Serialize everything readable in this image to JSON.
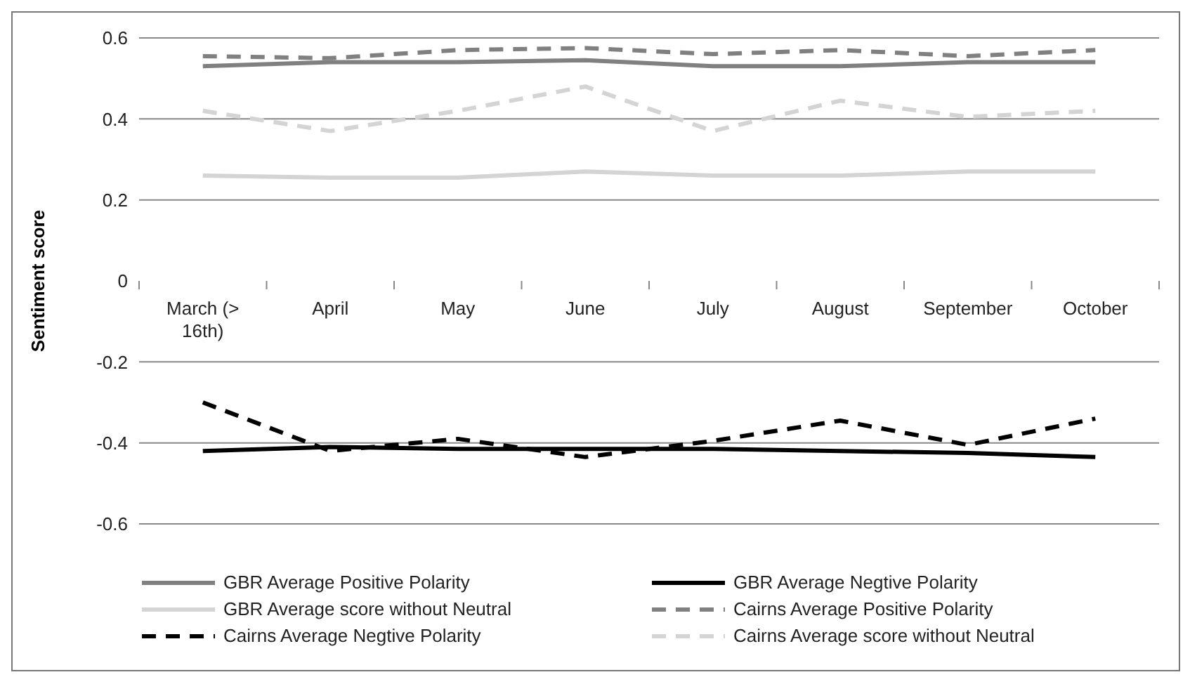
{
  "chart_data": {
    "type": "line",
    "ylabel": "Sentiment score",
    "categories": [
      "March (> 16th)",
      "April",
      "May",
      "June",
      "July",
      "August",
      "September",
      "October"
    ],
    "series": [
      {
        "name": "GBR Average Positive Polarity",
        "color": "#808080",
        "line_style": "solid",
        "values": [
          0.53,
          0.54,
          0.54,
          0.545,
          0.53,
          0.53,
          0.54,
          0.54
        ]
      },
      {
        "name": "GBR Average Negtive Polarity",
        "color": "#000000",
        "line_style": "solid",
        "values": [
          -0.42,
          -0.41,
          -0.415,
          -0.415,
          -0.415,
          -0.42,
          -0.425,
          -0.435
        ]
      },
      {
        "name": "GBR Average score without Neutral",
        "color": "#d4d4d4",
        "line_style": "solid",
        "values": [
          0.26,
          0.255,
          0.255,
          0.27,
          0.26,
          0.26,
          0.27,
          0.27
        ]
      },
      {
        "name": "Cairns Average Positive Polarity",
        "color": "#808080",
        "line_style": "dashed",
        "values": [
          0.555,
          0.55,
          0.57,
          0.575,
          0.56,
          0.57,
          0.555,
          0.57
        ]
      },
      {
        "name": "Cairns Average Negtive Polarity",
        "color": "#000000",
        "line_style": "dashed",
        "values": [
          -0.3,
          -0.42,
          -0.39,
          -0.435,
          -0.395,
          -0.345,
          -0.405,
          -0.34
        ]
      },
      {
        "name": "Cairns Average score without Neutral",
        "color": "#d4d4d4",
        "line_style": "dashed",
        "values": [
          0.42,
          0.37,
          0.42,
          0.48,
          0.37,
          0.445,
          0.405,
          0.42
        ]
      }
    ],
    "ylim": [
      -0.6,
      0.6
    ],
    "yticks": [
      -0.6,
      -0.4,
      -0.2,
      0,
      0.2,
      0.4,
      0.6
    ],
    "grid": "y",
    "legend": "bottom",
    "marker": "none"
  }
}
